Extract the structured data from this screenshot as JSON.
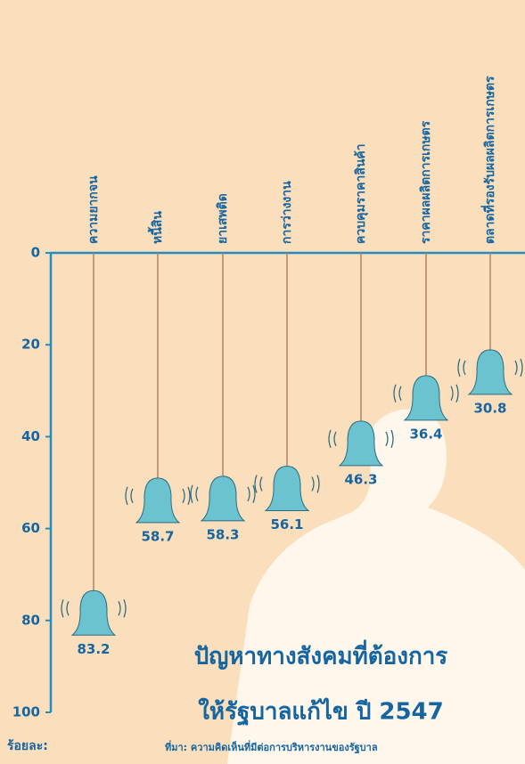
{
  "chart_data": {
    "type": "bell",
    "title": "ปัญหาทางสังคมที่ต้องการ",
    "subtitle": "ให้รัฐบาลแก้ไข ปี 2547",
    "y_label": "ร้อยละ:",
    "source": "ที่มา: ความคิดเห็นที่มีต่อการบริหารงานของรัฐบาล",
    "categories": [
      "ความยากจน",
      "หนี้สิน",
      "ยาเสพติด",
      "การว่างงาน",
      "ควบคุมราคาสินค้า",
      "ราคาผลผลิตการเกษตร",
      "ตลาดที่รองรับผลผลิตการเกษตร"
    ],
    "values": [
      83.2,
      58.7,
      58.3,
      56.1,
      46.3,
      36.4,
      30.8
    ],
    "color": "#6cc3d0",
    "ylim": [
      0,
      100
    ],
    "yticks": [
      0,
      20,
      40,
      60,
      80,
      100
    ],
    "y_inverted": true
  }
}
